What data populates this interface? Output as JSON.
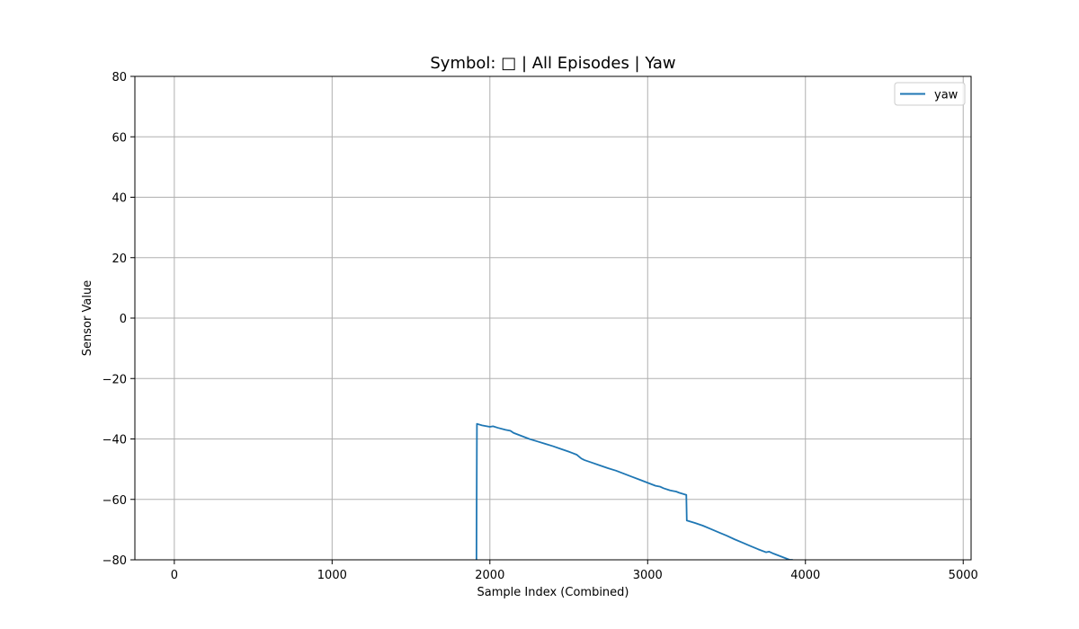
{
  "chart_data": {
    "type": "line",
    "title": "Symbol: □ | All Episodes | Yaw",
    "xlabel": "Sample Index (Combined)",
    "ylabel": "Sensor Value",
    "xlim": [
      -250,
      5050
    ],
    "ylim": [
      -80,
      80
    ],
    "x_ticks": [
      0,
      1000,
      2000,
      3000,
      4000,
      5000
    ],
    "y_ticks": [
      -80,
      -60,
      -40,
      -20,
      0,
      20,
      40,
      60,
      80
    ],
    "x_tick_labels": [
      "0",
      "1000",
      "2000",
      "3000",
      "4000",
      "5000"
    ],
    "y_tick_labels": [
      "−80",
      "−60",
      "−40",
      "−20",
      "0",
      "20",
      "40",
      "60",
      "80"
    ],
    "grid": true,
    "legend_position": "top-right",
    "series": [
      {
        "name": "yaw",
        "color": "#1f77b4",
        "x": [
          1915,
          1918,
          1950,
          2000,
          2020,
          2050,
          2100,
          2130,
          2150,
          2200,
          2250,
          2300,
          2350,
          2400,
          2450,
          2500,
          2550,
          2580,
          2600,
          2650,
          2700,
          2750,
          2800,
          2850,
          2900,
          2950,
          3000,
          3050,
          3080,
          3100,
          3140,
          3160,
          3180,
          3200,
          3245,
          3248,
          3300,
          3350,
          3400,
          3450,
          3500,
          3550,
          3600,
          3650,
          3700,
          3750,
          3770,
          3800,
          3850,
          3900,
          3920
        ],
        "y": [
          -80,
          -35,
          -35.5,
          -36,
          -35.8,
          -36.3,
          -37.0,
          -37.3,
          -38.0,
          -39.0,
          -40.0,
          -40.8,
          -41.6,
          -42.4,
          -43.3,
          -44.2,
          -45.2,
          -46.5,
          -47.0,
          -47.9,
          -48.8,
          -49.7,
          -50.5,
          -51.5,
          -52.5,
          -53.5,
          -54.5,
          -55.5,
          -55.8,
          -56.3,
          -57.0,
          -57.2,
          -57.4,
          -57.8,
          -58.5,
          -67.0,
          -67.8,
          -68.7,
          -69.8,
          -70.9,
          -72.0,
          -73.2,
          -74.3,
          -75.4,
          -76.5,
          -77.5,
          -77.3,
          -78.0,
          -79.0,
          -80.0,
          -80.0
        ]
      }
    ]
  }
}
